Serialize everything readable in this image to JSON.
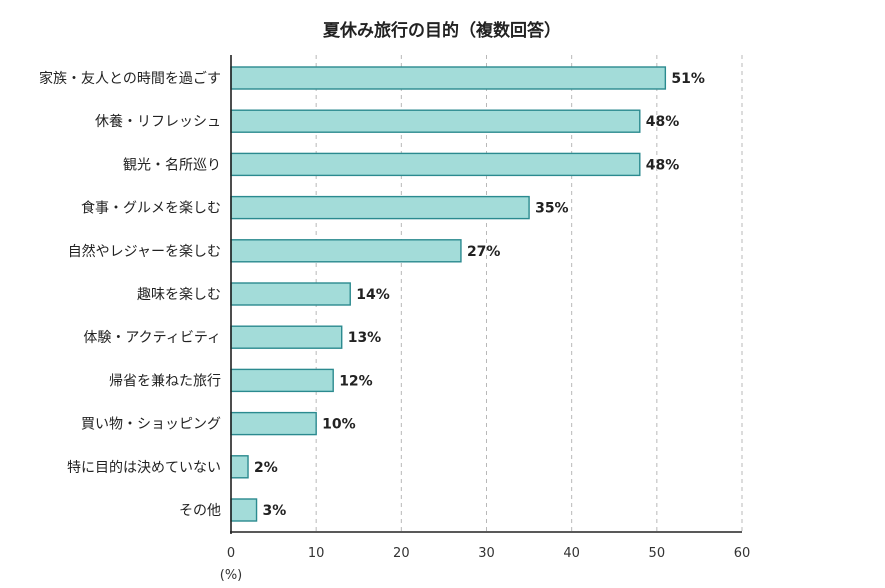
{
  "chart_data": {
    "type": "bar",
    "orientation": "horizontal",
    "title": "夏休み旅行の目的（複数回答）",
    "categories": [
      "家族・友人との時間を過ごす",
      "休養・リフレッシュ",
      "観光・名所巡り",
      "食事・グルメを楽しむ",
      "自然やレジャーを楽しむ",
      "趣味を楽しむ",
      "体験・アクティビティ",
      "帰省を兼ねた旅行",
      "買い物・ショッピング",
      "特に目的は決めていない",
      "その他"
    ],
    "values": [
      51,
      48,
      48,
      35,
      27,
      14,
      13,
      12,
      10,
      2,
      3
    ],
    "value_suffix": "%",
    "xlim": [
      0,
      60
    ],
    "xticks": [
      0,
      10,
      20,
      30,
      40,
      50,
      60
    ],
    "xlabel": "(%)",
    "ylabel": "",
    "grid": "vertical-dashed",
    "colors": {
      "bar_fill": "#a3dcd9",
      "bar_stroke": "#2b8a8f"
    }
  }
}
